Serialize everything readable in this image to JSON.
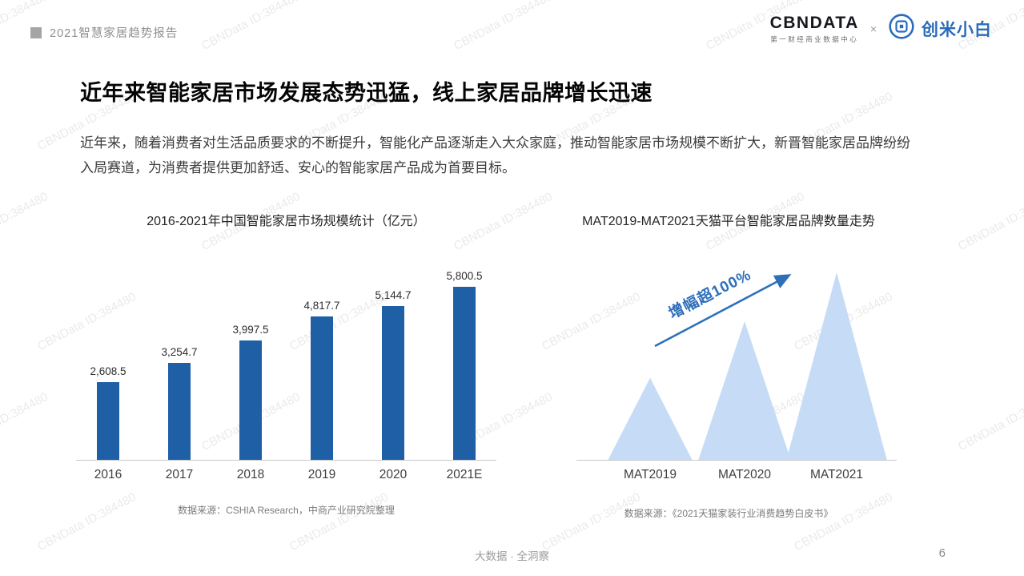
{
  "watermark": {
    "text": "CBNData ID:384480"
  },
  "header": {
    "report_title": "2021智慧家居趋势报告",
    "cbndata_logo": "CBNDATA",
    "cbndata_subtitle": "第一财经商业数据中心",
    "separator": "×",
    "partner_logo": "创米小白"
  },
  "main": {
    "title": "近年来智能家居市场发展态势迅猛，线上家居品牌增长迅速",
    "body": "近年来，随着消费者对生活品质要求的不断提升，智能化产品逐渐走入大众家庭，推动智能家居市场规模不断扩大，新晋智能家居品牌纷纷入局赛道，为消费者提供更加舒适、安心的智能家居产品成为首要目标。"
  },
  "chart_data": [
    {
      "type": "bar",
      "title": "2016-2021年中国智能家居市场规模统计（亿元）",
      "categories": [
        "2016",
        "2017",
        "2018",
        "2019",
        "2020",
        "2021E"
      ],
      "values": [
        2608.5,
        3254.7,
        3997.5,
        4817.7,
        5144.7,
        5800.5
      ],
      "value_labels": [
        "2,608.5",
        "3,254.7",
        "3,997.5",
        "4,817.7",
        "5,144.7",
        "5,800.5"
      ],
      "bar_color": "#1F5FA6",
      "ylim": [
        0,
        6000
      ],
      "grid": false,
      "legend": "none",
      "source": "数据来源：CSHIA Research，中商产业研究院整理"
    },
    {
      "type": "area",
      "title": "MAT2019-MAT2021天猫平台智能家居品牌数量走势",
      "categories": [
        "MAT2019",
        "MAT2020",
        "MAT2021"
      ],
      "relative_heights": [
        0.44,
        0.74,
        1.0
      ],
      "annotation": "增幅超100%",
      "fill_color": "#C6DBF6",
      "accent_color": "#2E6FBA",
      "grid": false,
      "legend": "none",
      "source": "数据来源：《2021天猫家装行业消费趋势白皮书》"
    }
  ],
  "footer": {
    "tagline": "大数据 · 全洞察",
    "page_number": "6"
  }
}
